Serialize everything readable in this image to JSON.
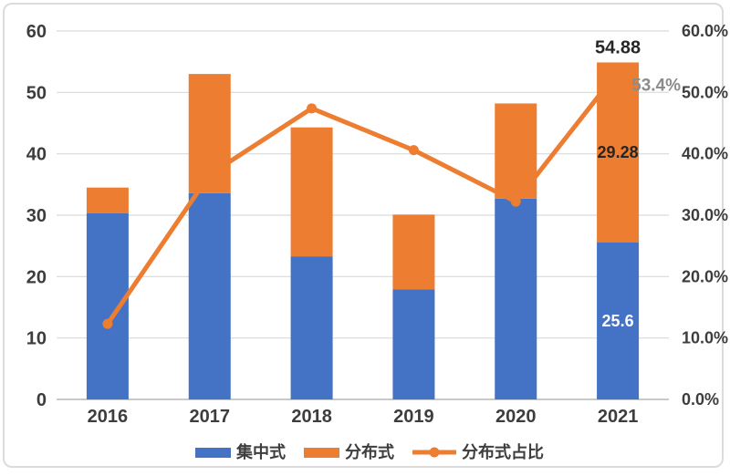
{
  "chart_data": {
    "type": "bar",
    "subtype": "stacked-bars-with-percentage-line",
    "categories": [
      "2016",
      "2017",
      "2018",
      "2019",
      "2020",
      "2021"
    ],
    "bar_series": [
      {
        "name": "集中式",
        "color": "#4472C4",
        "values": [
          30.3,
          33.6,
          23.3,
          17.9,
          32.7,
          25.6
        ]
      },
      {
        "name": "分布式",
        "color": "#ED7D31",
        "values": [
          4.2,
          19.4,
          21.0,
          12.2,
          15.5,
          29.28
        ]
      }
    ],
    "line_series": {
      "name": "分布式占比",
      "color": "#ED7D31",
      "marker": "circle",
      "values_pct": [
        12.3,
        36.6,
        47.4,
        40.6,
        32.2,
        53.4
      ]
    },
    "left_axis": {
      "min": 0,
      "max": 60,
      "step": 10,
      "ticks": [
        "0",
        "10",
        "20",
        "30",
        "40",
        "50",
        "60"
      ]
    },
    "right_axis": {
      "min_label": "0.0%",
      "max_label": "60.0%",
      "ticks": [
        "0.0%",
        "10.0%",
        "20.0%",
        "30.0%",
        "40.0%",
        "50.0%",
        "60.0%"
      ]
    },
    "grid": true,
    "legend_position": "bottom",
    "annotations": [
      {
        "text": "54.88",
        "category": "2021",
        "attach": "bar-total",
        "color": "#262626",
        "size": 20,
        "bold": true
      },
      {
        "text": "53.4%",
        "category": "2021",
        "attach": "line-point",
        "color": "#8c8c8c",
        "size": 19,
        "bold": true
      },
      {
        "text": "29.28",
        "category": "2021",
        "attach": "bar-segment-distributed",
        "color": "#262626",
        "size": 18,
        "bold": true
      },
      {
        "text": "25.6",
        "category": "2021",
        "attach": "bar-segment-centralized",
        "color": "#ffffff",
        "size": 18,
        "bold": true
      }
    ],
    "colors": {
      "grid": "#d9d9d9",
      "axis_line": "#b7b7b7",
      "tick_text": "#3d3d3d",
      "frame_border": "#dcdcdc",
      "background": "#ffffff"
    }
  }
}
